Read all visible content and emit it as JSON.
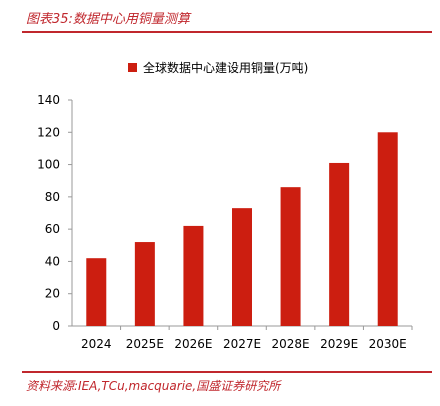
{
  "caption": "图表35:数据中心用铜量测算",
  "source": "资料来源:IEA,TCu,macquarie,国盛证券研究所",
  "colors": {
    "bar": "#cc1e10",
    "accent": "#c0272d",
    "axis": "#999999"
  },
  "chart_data": {
    "type": "bar",
    "categories": [
      "2024",
      "2025E",
      "2026E",
      "2027E",
      "2028E",
      "2029E",
      "2030E"
    ],
    "series": [
      {
        "name": "全球数据中心建设用铜量(万吨)",
        "values": [
          42,
          52,
          62,
          73,
          86,
          101,
          120
        ]
      }
    ],
    "title": "",
    "xlabel": "",
    "ylabel": "",
    "ylim": [
      0,
      140
    ],
    "yticks": [
      0,
      20,
      40,
      60,
      80,
      100,
      120,
      140
    ],
    "grid": false,
    "legend": "top-center"
  }
}
